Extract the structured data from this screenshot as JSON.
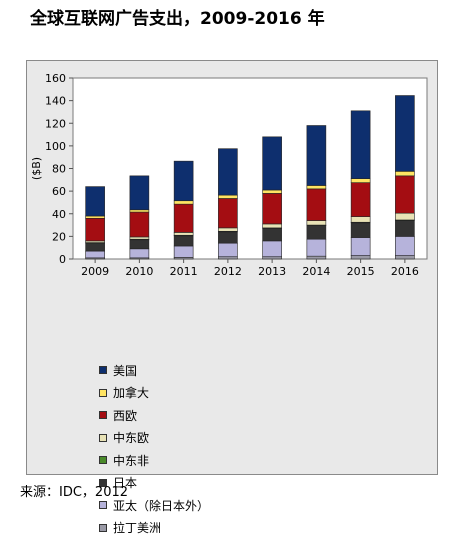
{
  "title": "全球互联网广告支出，2009-2016 年",
  "source": "来源：IDC，2012",
  "chart_data": {
    "type": "bar",
    "stacked": true,
    "title": "全球互联网广告支出，2009-2016 年",
    "ylabel": "($B)",
    "xlabel": "",
    "ylim": [
      0,
      160
    ],
    "yticks": [
      0,
      20,
      40,
      60,
      80,
      100,
      120,
      140,
      160
    ],
    "grid": false,
    "legend_position": "bottom-left",
    "categories": [
      "2009",
      "2010",
      "2011",
      "2012",
      "2013",
      "2014",
      "2015",
      "2016"
    ],
    "series": [
      {
        "name": "拉丁美洲",
        "color": "#9a9aa6",
        "values": [
          1,
          1,
          1.5,
          2,
          2,
          2.5,
          3,
          3
        ]
      },
      {
        "name": "亚太（除日本外）",
        "color": "#b6b3db",
        "values": [
          6,
          8,
          10,
          12,
          14,
          15,
          16,
          17
        ]
      },
      {
        "name": "日本",
        "color": "#333333",
        "values": [
          7,
          8,
          9,
          10,
          11,
          12,
          13,
          14
        ]
      },
      {
        "name": "中东非",
        "color": "#4a8a2a",
        "values": [
          0.5,
          0.5,
          0.5,
          0.5,
          0.5,
          0.5,
          0.5,
          0.5
        ]
      },
      {
        "name": "中东欧",
        "color": "#e8e2b6",
        "values": [
          1.5,
          2,
          2.5,
          3,
          3.5,
          4,
          5,
          6
        ]
      },
      {
        "name": "西欧",
        "color": "#a40d12",
        "values": [
          20,
          22,
          25,
          26,
          27,
          28,
          30,
          33
        ]
      },
      {
        "name": "加拿大",
        "color": "#ffe463",
        "values": [
          2,
          2,
          3,
          3,
          3,
          3,
          3.5,
          4
        ]
      },
      {
        "name": "美国",
        "color": "#0e2f6e",
        "values": [
          26,
          30,
          35,
          41,
          47,
          53,
          60,
          67
        ]
      }
    ],
    "legend_order": [
      "美国",
      "加拿大",
      "西欧",
      "中东欧",
      "中东非",
      "日本",
      "亚太（除日本外）",
      "拉丁美洲"
    ]
  }
}
